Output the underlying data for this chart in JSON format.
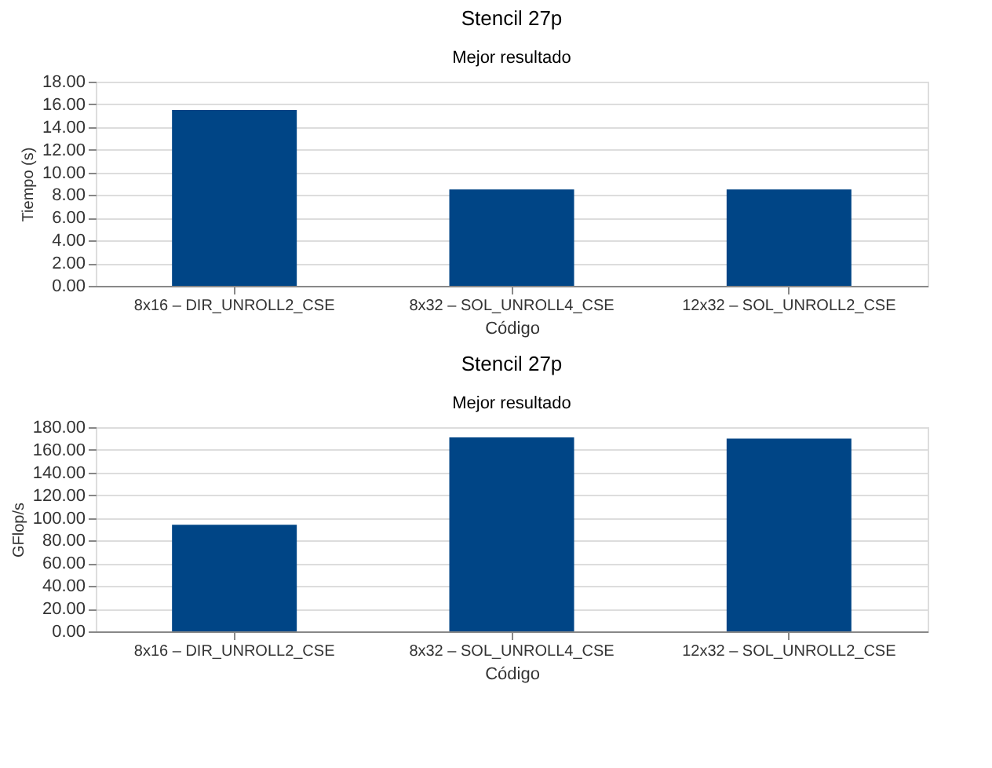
{
  "chart_data": [
    {
      "type": "bar",
      "title": "Stencil 27p",
      "subtitle": "Mejor resultado",
      "xlabel": "Código",
      "ylabel": "Tiempo (s)",
      "categories": [
        "8x16 – DIR_UNROLL2_CSE",
        "8x32 – SOL_UNROLL4_CSE",
        "12x32 – SOL_UNROLL2_CSE"
      ],
      "values": [
        15.5,
        8.5,
        8.5
      ],
      "color": "#004586",
      "ylim": [
        0,
        18
      ],
      "yticks": [
        {
          "value": 0,
          "label": "0.00"
        },
        {
          "value": 2,
          "label": "2.00"
        },
        {
          "value": 4,
          "label": "4.00"
        },
        {
          "value": 6,
          "label": "6.00"
        },
        {
          "value": 8,
          "label": "8.00"
        },
        {
          "value": 10,
          "label": "10.00"
        },
        {
          "value": 12,
          "label": "12.00"
        },
        {
          "value": 14,
          "label": "14.00"
        },
        {
          "value": 16,
          "label": "16.00"
        },
        {
          "value": 18,
          "label": "18.00"
        }
      ],
      "grid": "y"
    },
    {
      "type": "bar",
      "title": "Stencil 27p",
      "subtitle": "Mejor resultado",
      "xlabel": "Código",
      "ylabel": "GFlop/s",
      "categories": [
        "8x16 – DIR_UNROLL2_CSE",
        "8x32 – SOL_UNROLL4_CSE",
        "12x32 – SOL_UNROLL2_CSE"
      ],
      "values": [
        94,
        171,
        170
      ],
      "color": "#004586",
      "ylim": [
        0,
        180
      ],
      "yticks": [
        {
          "value": 0,
          "label": "0.00"
        },
        {
          "value": 20,
          "label": "20.00"
        },
        {
          "value": 40,
          "label": "40.00"
        },
        {
          "value": 60,
          "label": "60.00"
        },
        {
          "value": 80,
          "label": "80.00"
        },
        {
          "value": 100,
          "label": "100.00"
        },
        {
          "value": 120,
          "label": "120.00"
        },
        {
          "value": 140,
          "label": "140.00"
        },
        {
          "value": 160,
          "label": "160.00"
        },
        {
          "value": 180,
          "label": "180.00"
        }
      ],
      "grid": "y"
    }
  ]
}
